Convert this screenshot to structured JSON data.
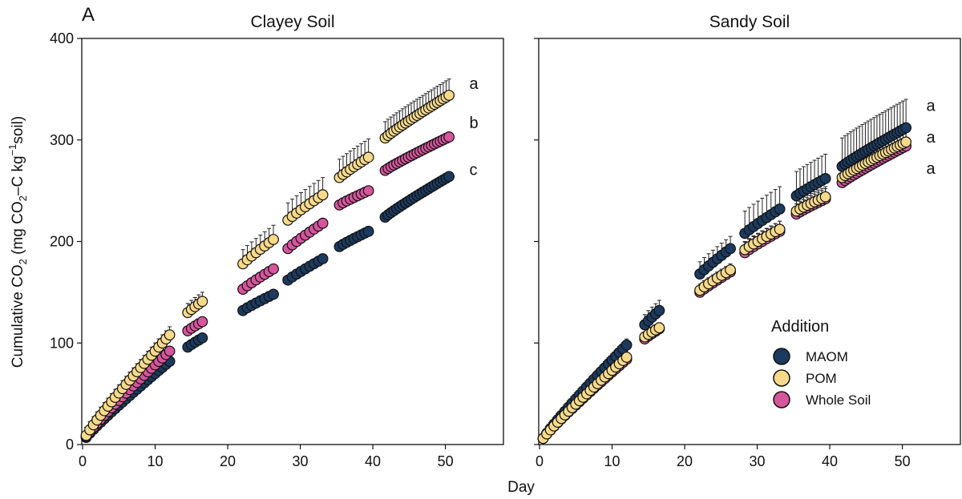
{
  "panel_label": "A",
  "shared_xlabel": "Day",
  "ylabel": {
    "main": "Cumulative CO",
    "sub2": "2",
    "unit_open": " (mg CO",
    "unit_sub2": "2",
    "unit_mid": "–C kg",
    "unit_sup": "−1",
    "unit_end": "soil)"
  },
  "legend": {
    "title": "Addition",
    "placement": "lower-right of Sandy Soil panel",
    "entries": [
      {
        "name": "MAOM",
        "color": "#1c3a5e"
      },
      {
        "name": "POM",
        "color": "#f6d98b"
      },
      {
        "name": "Whole Soil",
        "color": "#d6559d"
      }
    ]
  },
  "colors": {
    "MAOM": "#1c3a5e",
    "POM": "#f6d98b",
    "Whole Soil": "#d6559d",
    "marker_edge": "#111111",
    "error_bar": "#222222"
  },
  "chart_data": [
    {
      "type": "scatter",
      "title": "Clayey Soil",
      "xlabel": "Day",
      "ylabel": "Cumulative CO2 (mg CO2–C kg−1soil)",
      "xlim": [
        0,
        58
      ],
      "ylim": [
        0,
        400
      ],
      "xticks": [
        0,
        10,
        20,
        30,
        40,
        50
      ],
      "yticks": [
        0,
        100,
        200,
        300,
        400
      ],
      "grid": false,
      "segments": [
        {
          "start_day": 0.5,
          "step": 0.5,
          "count": 24
        },
        {
          "start_day": 14.5,
          "step": 0.5,
          "count": 5
        },
        {
          "start_day": 22.1,
          "step": 0.6,
          "count": 8
        },
        {
          "start_day": 28.3,
          "step": 0.6,
          "count": 9
        },
        {
          "start_day": 35.4,
          "step": 0.5,
          "count": 9
        },
        {
          "start_day": 41.7,
          "step": 0.4,
          "count": 23
        }
      ],
      "series": [
        {
          "name": "MAOM",
          "segment_values": [
            [
              7,
              82
            ],
            [
              96,
              105
            ],
            [
              132,
              148
            ],
            [
              162,
              183
            ],
            [
              195,
              210
            ],
            [
              224,
              264
            ]
          ],
          "error": 3
        },
        {
          "name": "POM",
          "segment_values": [
            [
              9,
              108
            ],
            [
              130,
              141
            ],
            [
              178,
              202
            ],
            [
              221,
              246
            ],
            [
              263,
              283
            ],
            [
              302,
              344
            ]
          ],
          "error": [
            8,
            9,
            14,
            17,
            18,
            16
          ]
        },
        {
          "name": "Whole Soil",
          "segment_values": [
            [
              8,
              92
            ],
            [
              112,
              121
            ],
            [
              153,
              173
            ],
            [
              193,
              218
            ],
            [
              236,
              250
            ],
            [
              270,
              303
            ]
          ],
          "error": 3
        }
      ],
      "annotations": [
        {
          "text": "a",
          "day": 53.3,
          "value": 356
        },
        {
          "text": "b",
          "day": 53.3,
          "value": 317
        },
        {
          "text": "c",
          "day": 53.3,
          "value": 271
        }
      ]
    },
    {
      "type": "scatter",
      "title": "Sandy Soil",
      "xlabel": "Day",
      "ylabel": "",
      "xlim": [
        0,
        58
      ],
      "ylim": [
        0,
        400
      ],
      "xticks": [
        0,
        10,
        20,
        30,
        40,
        50
      ],
      "yticks": [
        0,
        100,
        200,
        300,
        400
      ],
      "grid": false,
      "segments": [
        {
          "start_day": 0.5,
          "step": 0.5,
          "count": 24
        },
        {
          "start_day": 14.5,
          "step": 0.5,
          "count": 5
        },
        {
          "start_day": 22.1,
          "step": 0.6,
          "count": 8
        },
        {
          "start_day": 28.3,
          "step": 0.6,
          "count": 9
        },
        {
          "start_day": 35.4,
          "step": 0.5,
          "count": 9
        },
        {
          "start_day": 41.7,
          "step": 0.4,
          "count": 23
        }
      ],
      "series": [
        {
          "name": "MAOM",
          "segment_values": [
            [
              6,
              98
            ],
            [
              118,
              132
            ],
            [
              168,
              193
            ],
            [
              208,
              232
            ],
            [
              245,
              262
            ],
            [
              274,
              312
            ]
          ],
          "error": [
            6,
            10,
            12,
            22,
            24,
            28
          ]
        },
        {
          "name": "POM",
          "segment_values": [
            [
              6,
              86
            ],
            [
              106,
              115
            ],
            [
              152,
              172
            ],
            [
              192,
              212
            ],
            [
              230,
              244
            ],
            [
              263,
              298
            ]
          ],
          "error": [
            4,
            5,
            6,
            8,
            10,
            12
          ]
        },
        {
          "name": "Whole Soil",
          "segment_values": [
            [
              6,
              84
            ],
            [
              104,
              114
            ],
            [
              150,
              170
            ],
            [
              189,
              210
            ],
            [
              227,
              242
            ],
            [
              258,
              294
            ]
          ],
          "error": [
            4,
            5,
            6,
            10,
            10,
            14
          ]
        }
      ],
      "annotations": [
        {
          "text": "a",
          "day": 53.3,
          "value": 334
        },
        {
          "text": "a",
          "day": 53.3,
          "value": 303
        },
        {
          "text": "a",
          "day": 53.3,
          "value": 272
        }
      ]
    }
  ]
}
